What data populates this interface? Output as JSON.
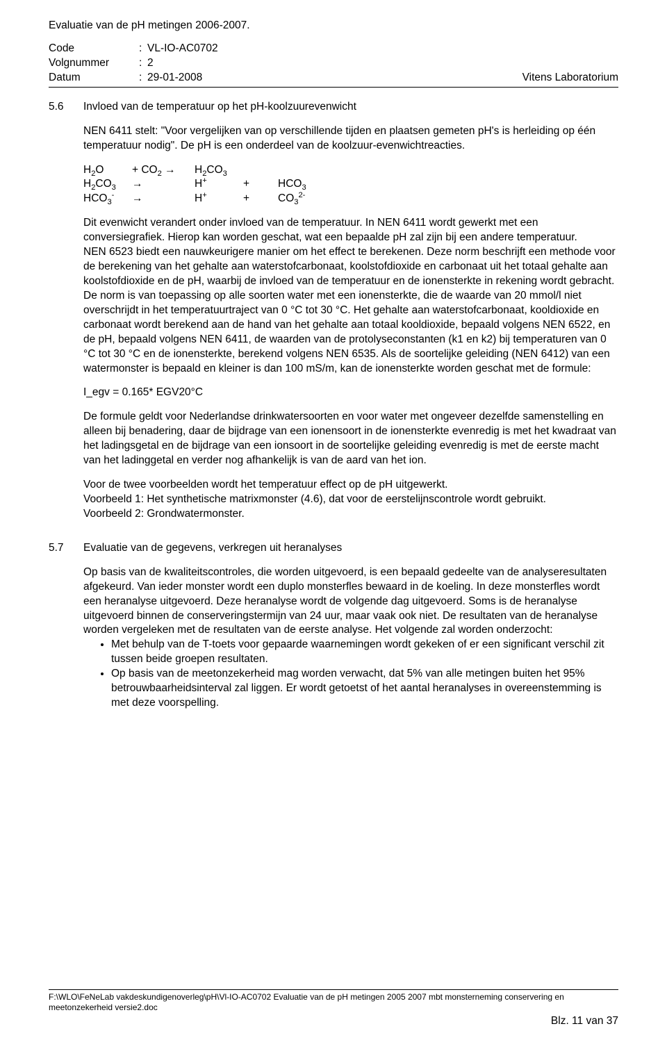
{
  "header": {
    "title": "Evaluatie van de pH metingen 2006-2007.",
    "meta": {
      "code_label": "Code",
      "code_value": "VL-IO-AC0702",
      "volg_label": "Volgnummer",
      "volg_value": "2",
      "datum_label": "Datum",
      "datum_value": "29-01-2008",
      "lab": "Vitens Laboratorium"
    }
  },
  "sec56": {
    "num": "5.6",
    "heading": "Invloed van de temperatuur op het pH-koolzuurevenwicht",
    "p1": "NEN 6411 stelt: \"Voor vergelijken van op verschillende tijden en plaatsen gemeten pH's is herleiding op één temperatuur nodig\". De pH is een onderdeel van de koolzuur-evenwichtreacties.",
    "eq": {
      "r1c1": "H",
      "r1c2": "+ CO",
      "r1arrow": "→",
      "r1c3": "H",
      "r1c3b": "CO",
      "r2c1": "H",
      "r2c1b": "CO",
      "r2arrow": "→",
      "r2c3": "H",
      "r2c4": "+",
      "r2c5": "HCO",
      "r3c1": "HCO",
      "r3arrow": "→",
      "r3c3": "H",
      "r3c4": "+",
      "r3c5": "CO"
    },
    "p2": "Dit evenwicht verandert onder invloed van de temperatuur. In NEN 6411 wordt gewerkt met een conversiegrafiek. Hierop kan worden geschat, wat een bepaalde pH zal zijn bij een andere temperatuur.",
    "p3": "NEN 6523 biedt een nauwkeurigere manier om het effect te berekenen. Deze norm beschrijft een methode voor de berekening van het gehalte aan waterstofcarbonaat, koolstofdioxide en carbonaat uit het totaal gehalte aan koolstofdioxide en de pH, waarbij de invloed van de temperatuur en de ionensterkte in rekening wordt gebracht. De norm is van toepassing op alle soorten water met een ionensterkte, die de waarde van 20 mmol/l niet overschrijdt in het temperatuurtraject van 0 °C tot 30 °C. Het gehalte aan waterstofcarbonaat, kooldioxide en carbonaat wordt berekend aan de hand van het gehalte aan totaal kooldioxide, bepaald volgens NEN 6522, en de pH, bepaald volgens NEN 6411, de waarden van de protolyseconstanten (k1 en k2) bij temperaturen van 0 °C tot 30 °C en de ionensterkte, berekend volgens NEN 6535. Als de soortelijke geleiding (NEN 6412) van een watermonster is bepaald en kleiner is dan 100 mS/m, kan de ionensterkte worden geschat met de formule:",
    "formula": "I_egv  = 0.165* EGV20°C",
    "p4": "De formule geldt voor Nederlandse drinkwatersoorten en voor water met ongeveer dezelfde samenstelling en alleen bij benadering, daar de bijdrage van een ionensoort in de ionensterkte evenredig is met het kwadraat van het ladingsgetal en de bijdrage van een ionsoort in de soortelijke geleiding evenredig is met de eerste macht van het ladinggetal en verder nog afhankelijk is van de aard van het ion.",
    "p5a": "Voor de twee voorbeelden wordt het temperatuur effect op de pH uitgewerkt.",
    "p5b": "Voorbeeld 1: Het synthetische matrixmonster (4.6), dat voor de eerstelijnscontrole wordt gebruikt.",
    "p5c": "Voorbeeld 2: Grondwatermonster."
  },
  "sec57": {
    "num": "5.7",
    "heading": "Evaluatie van de gegevens, verkregen uit heranalyses",
    "p1": "Op basis van de kwaliteitscontroles, die worden uitgevoerd, is een bepaald gedeelte van de analyseresultaten afgekeurd. Van ieder monster wordt een duplo monsterfles bewaard in de koeling. In deze monsterfles wordt een heranalyse uitgevoerd. Deze heranalyse wordt de volgende dag uitgevoerd. Soms is de heranalyse uitgevoerd binnen de conserveringstermijn van 24 uur, maar vaak ook niet. De resultaten van de heranalyse worden vergeleken met de resultaten van de eerste analyse. Het volgende zal worden onderzocht:",
    "b1": "Met behulp van de T-toets voor gepaarde waarnemingen wordt gekeken of er een significant verschil zit tussen beide groepen resultaten.",
    "b2": "Op basis van de meetonzekerheid mag worden verwacht, dat 5% van alle metingen buiten het 95% betrouwbaarheidsinterval zal liggen. Er wordt getoetst of het aantal heranalyses in overeenstemming is met deze voorspelling."
  },
  "footer": {
    "path": "F:\\WLO\\FeNeLab vakdeskundigenoverleg\\pH\\Vl-IO-AC0702 Evaluatie van de pH metingen 2005 2007 mbt monsterneming conservering en meetonzekerheid versie2.doc",
    "page": "Blz. 11 van 37"
  }
}
